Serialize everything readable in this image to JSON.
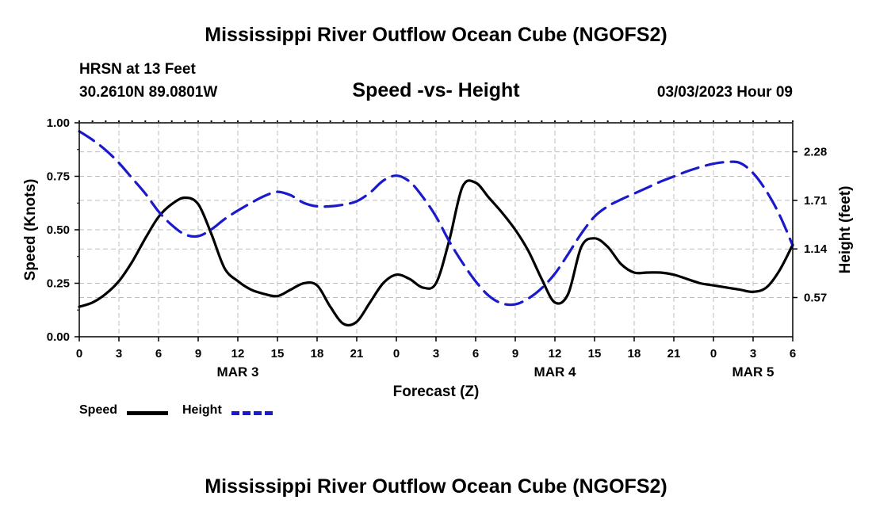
{
  "header": {
    "title": "Mississippi River Outflow Ocean Cube (NGOFS2)",
    "station": "HRSN at 13 Feet",
    "coordinates": "30.2610N  89.0801W",
    "subtitle": "Speed -vs- Height",
    "datetime": "03/03/2023 Hour 09"
  },
  "footer": {
    "title": "Mississippi River Outflow Ocean Cube (NGOFS2)"
  },
  "legend": {
    "items": [
      {
        "label": "Speed",
        "color": "#000000",
        "style": "solid"
      },
      {
        "label": "Height",
        "color": "#1a1acc",
        "style": "dashed"
      }
    ]
  },
  "chart_data": {
    "type": "line",
    "xlabel": "Forecast (Z)",
    "ylabel": "Speed (Knots)",
    "y2label": "Height (feet)",
    "grid": true,
    "xlim": [
      0,
      54
    ],
    "ylim": [
      0,
      1.0
    ],
    "y2lim": [
      0.11,
      2.62
    ],
    "x_ticks": [
      0,
      3,
      6,
      9,
      12,
      15,
      18,
      21,
      24,
      27,
      30,
      33,
      36,
      39,
      42,
      45,
      48,
      51,
      54
    ],
    "x_tick_labels": [
      "0",
      "3",
      "6",
      "9",
      "12",
      "15",
      "18",
      "21",
      "0",
      "3",
      "6",
      "9",
      "12",
      "15",
      "18",
      "21",
      "0",
      "3",
      "6"
    ],
    "date_labels": [
      {
        "x": 12,
        "label": "MAR 3"
      },
      {
        "x": 36,
        "label": "MAR 4"
      },
      {
        "x": 51,
        "label": "MAR 5"
      }
    ],
    "y_ticks": [
      0.0,
      0.25,
      0.5,
      0.75,
      1.0
    ],
    "y_tick_labels": [
      "0.00",
      "0.25",
      "0.50",
      "0.75",
      "1.00"
    ],
    "y2_ticks": [
      0.57,
      1.14,
      1.71,
      2.28
    ],
    "y2_tick_labels": [
      "0.57",
      "1.14",
      "1.71",
      "2.28"
    ],
    "series": [
      {
        "name": "Speed",
        "axis": "left",
        "color": "#000000",
        "x": [
          0,
          1,
          2,
          3,
          4,
          5,
          6,
          7,
          8,
          9,
          10,
          11,
          12,
          13,
          14,
          15,
          16,
          17,
          18,
          19,
          20,
          21,
          22,
          23,
          24,
          25,
          26,
          27,
          28,
          29,
          30,
          31,
          32,
          33,
          34,
          35,
          36,
          37,
          38,
          39,
          40,
          41,
          42,
          43,
          44,
          45,
          46,
          47,
          48,
          49,
          50,
          51,
          52,
          53,
          54
        ],
        "values": [
          0.14,
          0.16,
          0.2,
          0.26,
          0.35,
          0.46,
          0.56,
          0.62,
          0.65,
          0.62,
          0.48,
          0.32,
          0.26,
          0.22,
          0.2,
          0.19,
          0.22,
          0.25,
          0.24,
          0.14,
          0.06,
          0.07,
          0.16,
          0.25,
          0.29,
          0.27,
          0.23,
          0.25,
          0.45,
          0.7,
          0.72,
          0.65,
          0.58,
          0.5,
          0.4,
          0.27,
          0.16,
          0.2,
          0.42,
          0.46,
          0.42,
          0.34,
          0.3,
          0.3,
          0.3,
          0.29,
          0.27,
          0.25,
          0.24,
          0.23,
          0.22,
          0.21,
          0.23,
          0.31,
          0.43
        ]
      },
      {
        "name": "Height",
        "axis": "right",
        "color": "#1a1acc",
        "x": [
          0,
          1,
          2,
          3,
          4,
          5,
          6,
          7,
          8,
          9,
          10,
          11,
          12,
          13,
          14,
          15,
          16,
          17,
          18,
          19,
          20,
          21,
          22,
          23,
          24,
          25,
          26,
          27,
          28,
          29,
          30,
          31,
          32,
          33,
          34,
          35,
          36,
          37,
          38,
          39,
          40,
          41,
          42,
          43,
          44,
          45,
          46,
          47,
          48,
          49,
          50,
          51,
          52,
          53,
          54
        ],
        "values": [
          2.52,
          2.42,
          2.3,
          2.15,
          1.97,
          1.79,
          1.58,
          1.42,
          1.31,
          1.29,
          1.37,
          1.49,
          1.59,
          1.68,
          1.76,
          1.81,
          1.77,
          1.68,
          1.64,
          1.64,
          1.66,
          1.7,
          1.8,
          1.94,
          2.0,
          1.93,
          1.75,
          1.52,
          1.23,
          0.98,
          0.76,
          0.59,
          0.5,
          0.49,
          0.56,
          0.68,
          0.85,
          1.08,
          1.32,
          1.52,
          1.64,
          1.72,
          1.79,
          1.86,
          1.93,
          1.99,
          2.05,
          2.1,
          2.14,
          2.16,
          2.15,
          2.03,
          1.82,
          1.54,
          1.18
        ]
      }
    ]
  }
}
